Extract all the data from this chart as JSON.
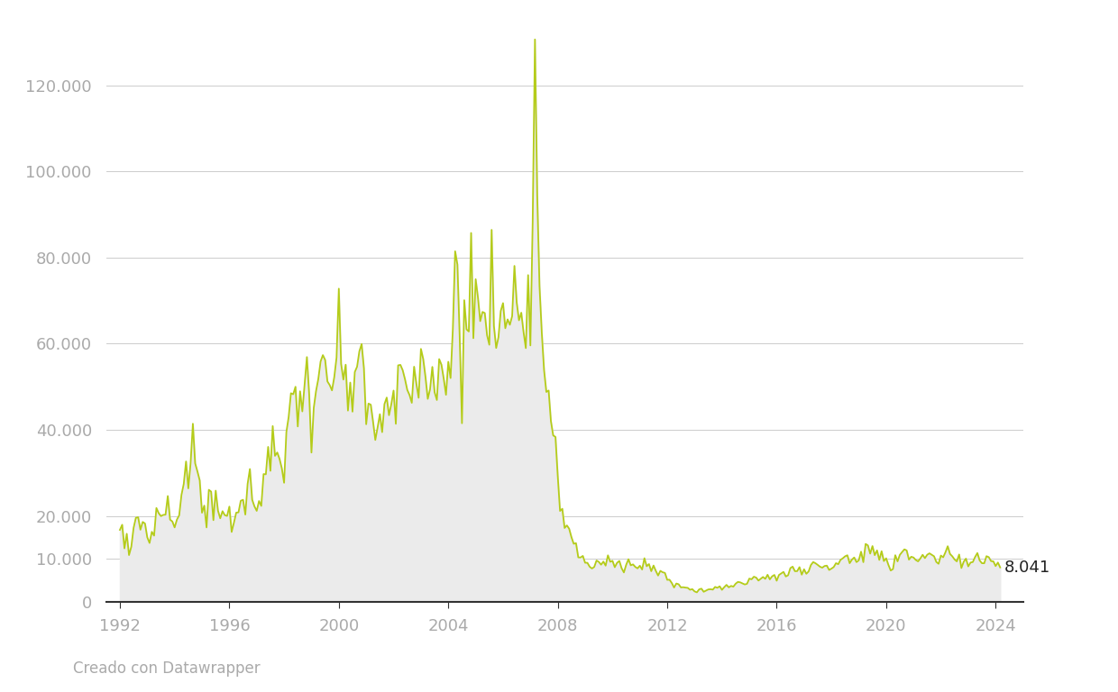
{
  "line_color": "#b5cc1a",
  "fill_color": "#ebebeb",
  "background_color": "#ffffff",
  "annotation_label": "8.041",
  "yticks": [
    0,
    10000,
    20000,
    40000,
    60000,
    80000,
    100000,
    120000
  ],
  "ytick_labels": [
    "0",
    "10.000",
    "20.000",
    "40.000",
    "60.000",
    "80.000",
    "100.000",
    "120.000"
  ],
  "xtick_labels": [
    "1992",
    "1996",
    "2000",
    "2004",
    "2008",
    "2012",
    "2016",
    "2020",
    "2024"
  ],
  "xtick_years": [
    1992,
    1996,
    2000,
    2004,
    2008,
    2012,
    2016,
    2020,
    2024
  ],
  "credit": "Creado con Datawrapper",
  "credit_fontsize": 12,
  "ylim_max": 135000,
  "xlim_min": 1991.5,
  "xlim_max": 2025.0,
  "line_width": 1.3,
  "tick_label_color": "#aaaaaa",
  "grid_color": "#cccccc",
  "spine_color": "#333333",
  "annot_color": "#222222",
  "annot_fontsize": 13,
  "tick_fontsize": 13
}
